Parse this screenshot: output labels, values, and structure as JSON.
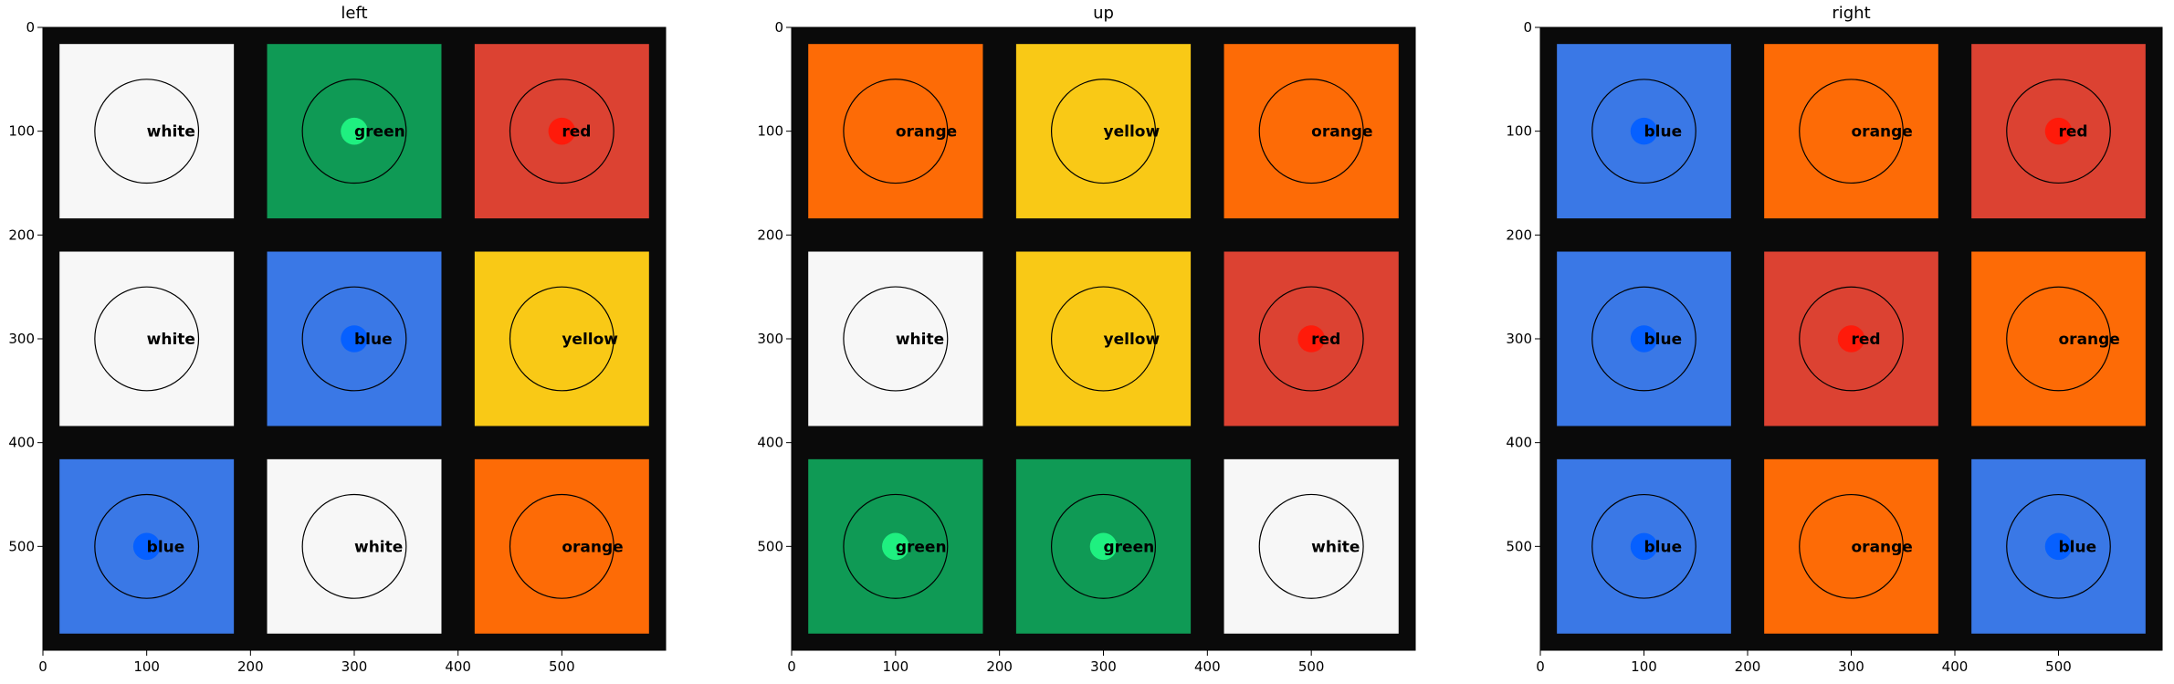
{
  "colors": {
    "white": "#f7f7f7",
    "green": "#0f9a55",
    "red": "#dc4232",
    "blue": "#3a78e6",
    "yellow": "#f9c916",
    "orange": "#fd6b06",
    "frame": "#0a0a0a"
  },
  "chart_data": [
    {
      "type": "heatmap",
      "title": "left",
      "xlim": [
        0,
        600
      ],
      "ylim": [
        600,
        0
      ],
      "x_ticks": [
        0,
        100,
        200,
        300,
        400,
        500
      ],
      "y_ticks": [
        0,
        100,
        200,
        300,
        400,
        500
      ],
      "cells": [
        {
          "x": 100,
          "y": 100,
          "color": "white",
          "label": "white"
        },
        {
          "x": 300,
          "y": 100,
          "color": "green",
          "label": "green"
        },
        {
          "x": 500,
          "y": 100,
          "color": "red",
          "label": "red"
        },
        {
          "x": 100,
          "y": 300,
          "color": "white",
          "label": "white"
        },
        {
          "x": 300,
          "y": 300,
          "color": "blue",
          "label": "blue"
        },
        {
          "x": 500,
          "y": 300,
          "color": "yellow",
          "label": "yellow"
        },
        {
          "x": 100,
          "y": 500,
          "color": "blue",
          "label": "blue"
        },
        {
          "x": 300,
          "y": 500,
          "color": "white",
          "label": "white"
        },
        {
          "x": 500,
          "y": 500,
          "color": "orange",
          "label": "orange"
        }
      ]
    },
    {
      "type": "heatmap",
      "title": "up",
      "xlim": [
        0,
        600
      ],
      "ylim": [
        600,
        0
      ],
      "x_ticks": [
        0,
        100,
        200,
        300,
        400,
        500
      ],
      "y_ticks": [
        0,
        100,
        200,
        300,
        400,
        500
      ],
      "cells": [
        {
          "x": 100,
          "y": 100,
          "color": "orange",
          "label": "orange"
        },
        {
          "x": 300,
          "y": 100,
          "color": "yellow",
          "label": "yellow"
        },
        {
          "x": 500,
          "y": 100,
          "color": "orange",
          "label": "orange"
        },
        {
          "x": 100,
          "y": 300,
          "color": "white",
          "label": "white"
        },
        {
          "x": 300,
          "y": 300,
          "color": "yellow",
          "label": "yellow"
        },
        {
          "x": 500,
          "y": 300,
          "color": "red",
          "label": "red"
        },
        {
          "x": 100,
          "y": 500,
          "color": "green",
          "label": "green"
        },
        {
          "x": 300,
          "y": 500,
          "color": "green",
          "label": "green"
        },
        {
          "x": 500,
          "y": 500,
          "color": "white",
          "label": "white"
        }
      ]
    },
    {
      "type": "heatmap",
      "title": "right",
      "xlim": [
        0,
        600
      ],
      "ylim": [
        600,
        0
      ],
      "x_ticks": [
        0,
        100,
        200,
        300,
        400,
        500
      ],
      "y_ticks": [
        0,
        100,
        200,
        300,
        400,
        500
      ],
      "cells": [
        {
          "x": 100,
          "y": 100,
          "color": "blue",
          "label": "blue"
        },
        {
          "x": 300,
          "y": 100,
          "color": "orange",
          "label": "orange"
        },
        {
          "x": 500,
          "y": 100,
          "color": "red",
          "label": "red"
        },
        {
          "x": 100,
          "y": 300,
          "color": "blue",
          "label": "blue"
        },
        {
          "x": 300,
          "y": 300,
          "color": "red",
          "label": "red"
        },
        {
          "x": 500,
          "y": 300,
          "color": "orange",
          "label": "orange"
        },
        {
          "x": 100,
          "y": 500,
          "color": "blue",
          "label": "blue"
        },
        {
          "x": 300,
          "y": 500,
          "color": "orange",
          "label": "orange"
        },
        {
          "x": 500,
          "y": 500,
          "color": "blue",
          "label": "blue"
        }
      ]
    }
  ]
}
